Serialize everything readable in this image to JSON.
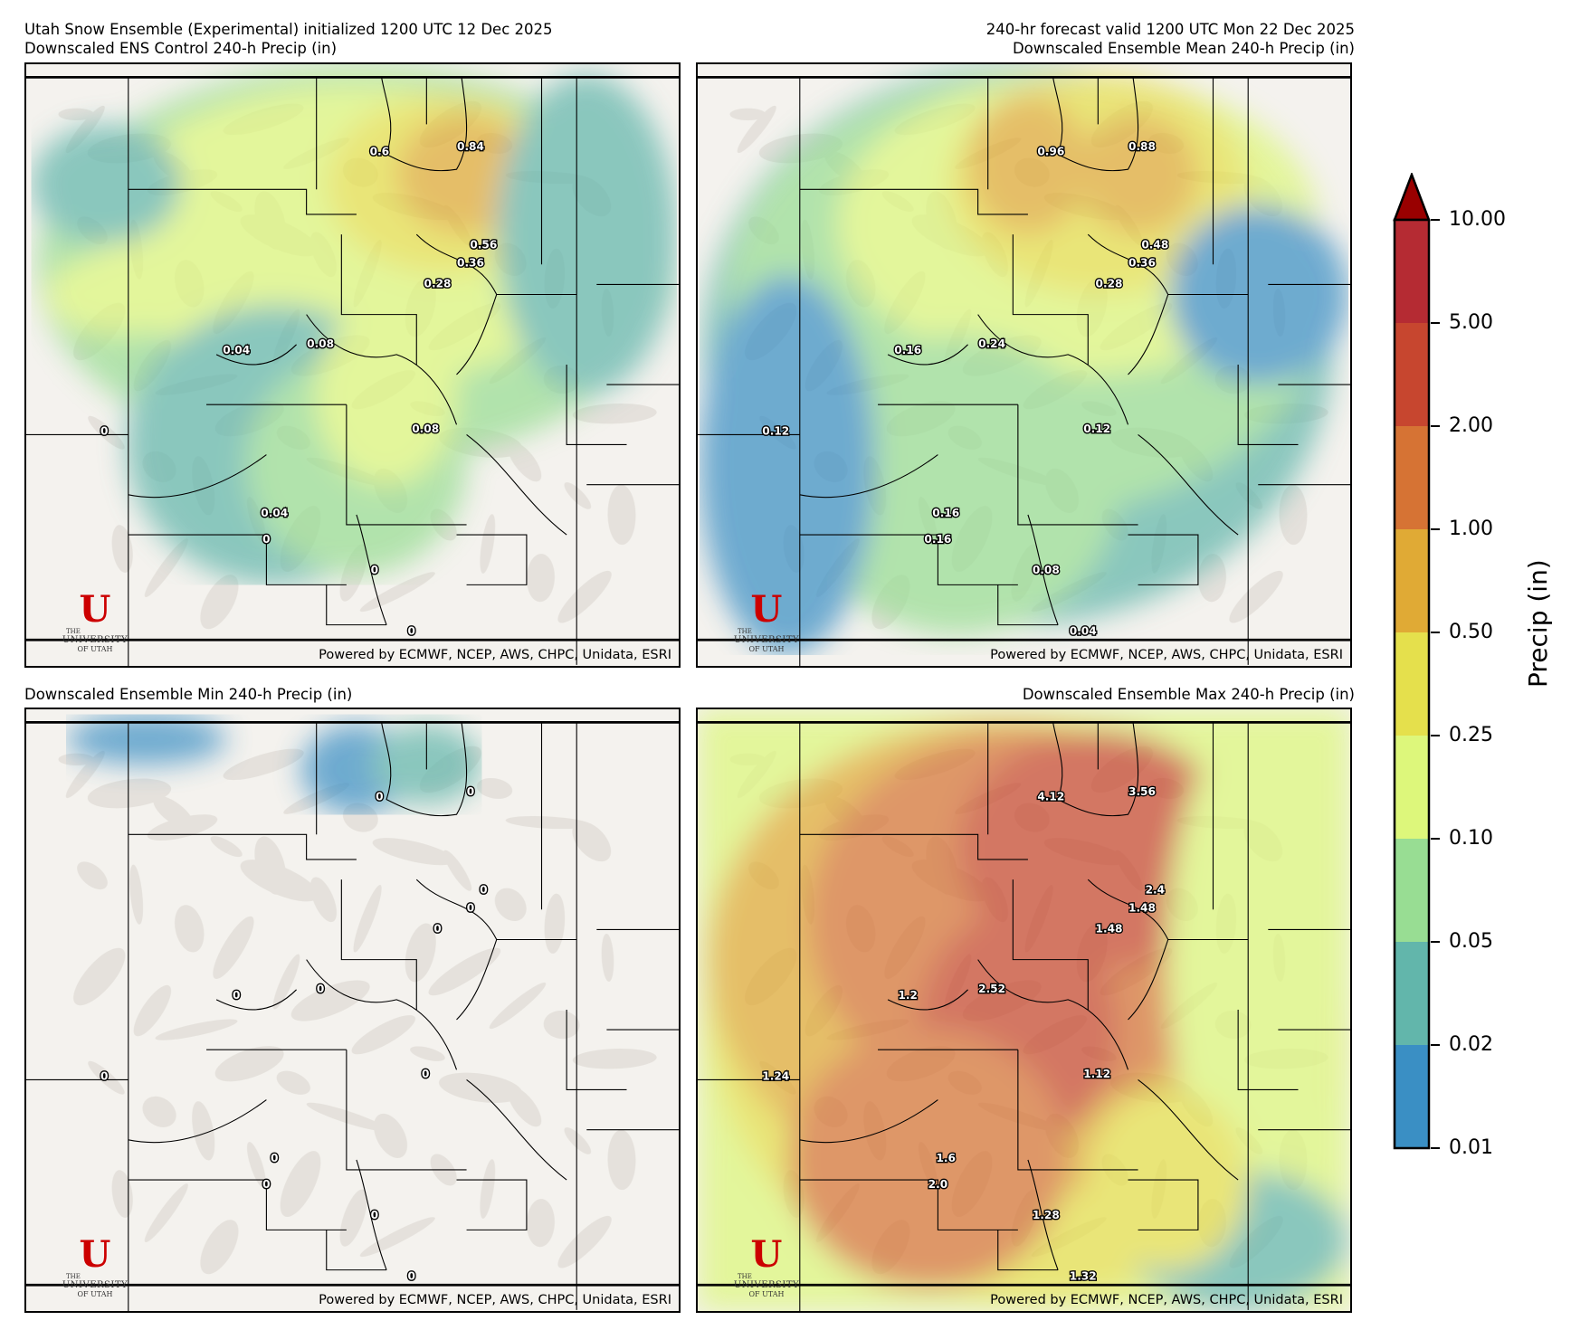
{
  "header": {
    "title_left": "Utah Snow Ensemble (Experimental) initialized 1200 UTC 12 Dec 2025",
    "title_right": "240-hr forecast valid 1200 UTC Mon 22 Dec 2025"
  },
  "panels": [
    {
      "title": "Downscaled ENS Control 240-h Precip (in)",
      "credit": "Powered by ECMWF, NCEP, AWS, CHPC, Unidata, ESRI",
      "field": "control",
      "contour_labels": [
        "0.6",
        "0.84",
        "0.56",
        "0.36",
        "0.28",
        "0.04",
        "0.08",
        "0",
        "0.08",
        "0.04",
        "0",
        "0",
        "0"
      ]
    },
    {
      "title": "Downscaled Ensemble Mean 240-h Precip (in)",
      "credit": "Powered by ECMWF, NCEP, AWS, CHPC, Unidata, ESRI",
      "field": "mean",
      "contour_labels": [
        "0.96",
        "0.88",
        "0.48",
        "0.36",
        "0.28",
        "0.16",
        "0.24",
        "0.12",
        "0.12",
        "0.16",
        "0.16",
        "0.08",
        "0.04"
      ]
    },
    {
      "title": "Downscaled Ensemble Min 240-h Precip (in)",
      "credit": "Powered by ECMWF, NCEP, AWS, CHPC, Unidata, ESRI",
      "field": "min",
      "contour_labels": [
        "0",
        "0",
        "0",
        "0",
        "0",
        "0",
        "0",
        "0",
        "0",
        "0",
        "0",
        "0",
        "0"
      ]
    },
    {
      "title": "Downscaled Ensemble Max 240-h Precip (in)",
      "credit": "Powered by ECMWF, NCEP, AWS, CHPC, Unidata, ESRI",
      "field": "max",
      "contour_labels": [
        "4.12",
        "3.56",
        "2.4",
        "1.48",
        "1.48",
        "1.2",
        "2.52",
        "1.24",
        "1.12",
        "1.6",
        "2.0",
        "1.28",
        "1.32"
      ]
    }
  ],
  "logo": {
    "line1": "THE",
    "line2": "UNIVERSITY",
    "line3": "OF UTAH",
    "mark": "U"
  },
  "chart_data": {
    "type": "heatmap",
    "colorbar": {
      "label": "Precip (in)",
      "ticks": [
        "0.01",
        "0.02",
        "0.05",
        "0.10",
        "0.25",
        "0.50",
        "1.00",
        "2.00",
        "5.00",
        "10.00"
      ],
      "colors": [
        "#3a8fc4",
        "#62b6ab",
        "#98dd93",
        "#ddf77b",
        "#e5e04c",
        "#e0aa35",
        "#d67334",
        "#c7462f",
        "#b52b33"
      ],
      "extend_max_color": "#990000",
      "extend": "max"
    }
  }
}
